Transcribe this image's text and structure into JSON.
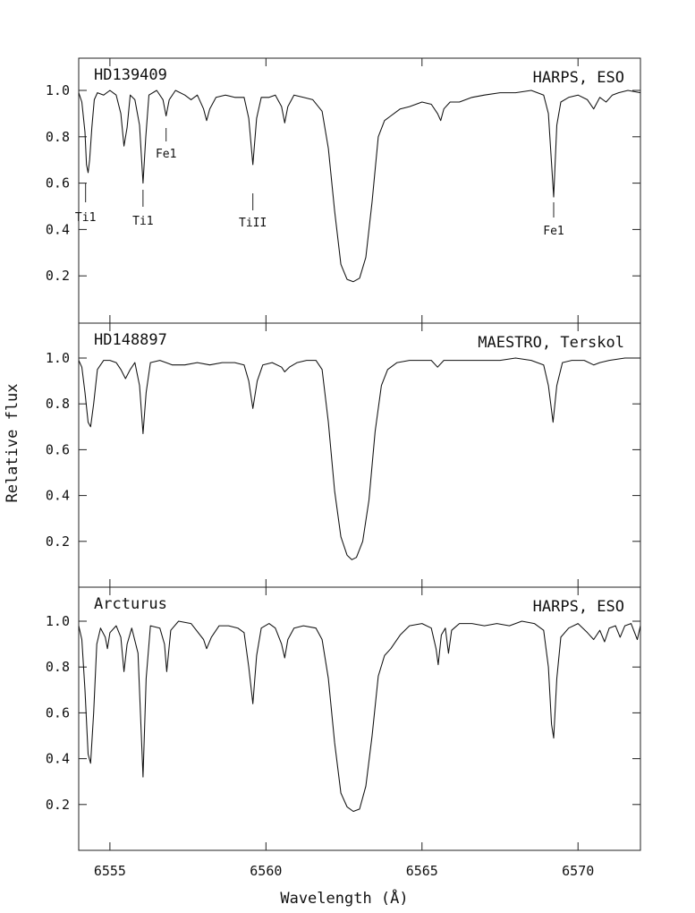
{
  "chart_data": {
    "type": "line",
    "ylabel": "Relative flux",
    "xlabel": "Wavelength (Å)",
    "xlim": [
      6554.0,
      6572.0
    ],
    "xticks": [
      6555,
      6560,
      6565,
      6570
    ],
    "ylim": [
      0.0,
      1.14
    ],
    "yticks": [
      0.2,
      0.4,
      0.6,
      0.8,
      1.0
    ],
    "ytick_labels": [
      "0.2",
      "0.4",
      "0.6",
      "0.8",
      "1.0"
    ],
    "panels": [
      {
        "star": "HD139409",
        "instrument": "HARPS, ESO",
        "line_ids": [
          {
            "label": "Ti1",
            "x": 6554.22
          },
          {
            "label": "Ti1",
            "x": 6556.06
          },
          {
            "label": "Fe1",
            "x": 6556.8
          },
          {
            "label": "TiII",
            "x": 6559.58
          },
          {
            "label": "Fe1",
            "x": 6569.22
          }
        ],
        "points": [
          [
            6554.0,
            0.99
          ],
          [
            6554.1,
            0.95
          ],
          [
            6554.2,
            0.82
          ],
          [
            6554.25,
            0.68
          ],
          [
            6554.3,
            0.645
          ],
          [
            6554.35,
            0.7
          ],
          [
            6554.42,
            0.84
          ],
          [
            6554.5,
            0.96
          ],
          [
            6554.6,
            0.99
          ],
          [
            6554.8,
            0.98
          ],
          [
            6555.0,
            1.0
          ],
          [
            6555.2,
            0.98
          ],
          [
            6555.35,
            0.9
          ],
          [
            6555.45,
            0.76
          ],
          [
            6555.55,
            0.84
          ],
          [
            6555.65,
            0.98
          ],
          [
            6555.8,
            0.96
          ],
          [
            6555.95,
            0.85
          ],
          [
            6556.06,
            0.6
          ],
          [
            6556.15,
            0.8
          ],
          [
            6556.25,
            0.98
          ],
          [
            6556.5,
            1.0
          ],
          [
            6556.7,
            0.96
          ],
          [
            6556.8,
            0.89
          ],
          [
            6556.9,
            0.96
          ],
          [
            6557.1,
            1.0
          ],
          [
            6557.4,
            0.98
          ],
          [
            6557.6,
            0.96
          ],
          [
            6557.8,
            0.98
          ],
          [
            6558.0,
            0.92
          ],
          [
            6558.1,
            0.87
          ],
          [
            6558.2,
            0.92
          ],
          [
            6558.4,
            0.97
          ],
          [
            6558.7,
            0.98
          ],
          [
            6559.0,
            0.97
          ],
          [
            6559.3,
            0.97
          ],
          [
            6559.45,
            0.88
          ],
          [
            6559.58,
            0.68
          ],
          [
            6559.7,
            0.88
          ],
          [
            6559.85,
            0.97
          ],
          [
            6560.1,
            0.97
          ],
          [
            6560.3,
            0.98
          ],
          [
            6560.5,
            0.93
          ],
          [
            6560.6,
            0.86
          ],
          [
            6560.7,
            0.93
          ],
          [
            6560.9,
            0.98
          ],
          [
            6561.2,
            0.97
          ],
          [
            6561.5,
            0.96
          ],
          [
            6561.8,
            0.91
          ],
          [
            6562.0,
            0.75
          ],
          [
            6562.2,
            0.48
          ],
          [
            6562.4,
            0.25
          ],
          [
            6562.6,
            0.185
          ],
          [
            6562.8,
            0.175
          ],
          [
            6563.0,
            0.19
          ],
          [
            6563.2,
            0.28
          ],
          [
            6563.4,
            0.52
          ],
          [
            6563.6,
            0.8
          ],
          [
            6563.8,
            0.87
          ],
          [
            6564.0,
            0.89
          ],
          [
            6564.3,
            0.92
          ],
          [
            6564.6,
            0.93
          ],
          [
            6565.0,
            0.95
          ],
          [
            6565.3,
            0.94
          ],
          [
            6565.5,
            0.9
          ],
          [
            6565.6,
            0.87
          ],
          [
            6565.7,
            0.92
          ],
          [
            6565.9,
            0.95
          ],
          [
            6566.2,
            0.95
          ],
          [
            6566.6,
            0.97
          ],
          [
            6567.0,
            0.98
          ],
          [
            6567.5,
            0.99
          ],
          [
            6568.0,
            0.99
          ],
          [
            6568.5,
            1.0
          ],
          [
            6568.9,
            0.98
          ],
          [
            6569.05,
            0.9
          ],
          [
            6569.22,
            0.54
          ],
          [
            6569.32,
            0.85
          ],
          [
            6569.45,
            0.95
          ],
          [
            6569.7,
            0.97
          ],
          [
            6570.0,
            0.98
          ],
          [
            6570.3,
            0.96
          ],
          [
            6570.5,
            0.92
          ],
          [
            6570.7,
            0.97
          ],
          [
            6570.9,
            0.95
          ],
          [
            6571.1,
            0.98
          ],
          [
            6571.3,
            0.99
          ],
          [
            6571.6,
            1.0
          ],
          [
            6572.0,
            0.99
          ]
        ]
      },
      {
        "star": "HD148897",
        "instrument": "MAESTRO, Terskol",
        "line_ids": [],
        "points": [
          [
            6554.0,
            0.99
          ],
          [
            6554.1,
            0.96
          ],
          [
            6554.2,
            0.85
          ],
          [
            6554.3,
            0.72
          ],
          [
            6554.38,
            0.7
          ],
          [
            6554.48,
            0.8
          ],
          [
            6554.6,
            0.95
          ],
          [
            6554.8,
            0.99
          ],
          [
            6555.0,
            0.99
          ],
          [
            6555.2,
            0.98
          ],
          [
            6555.35,
            0.95
          ],
          [
            6555.5,
            0.91
          ],
          [
            6555.65,
            0.95
          ],
          [
            6555.8,
            0.98
          ],
          [
            6555.95,
            0.88
          ],
          [
            6556.06,
            0.67
          ],
          [
            6556.16,
            0.85
          ],
          [
            6556.3,
            0.98
          ],
          [
            6556.6,
            0.99
          ],
          [
            6556.8,
            0.98
          ],
          [
            6557.0,
            0.97
          ],
          [
            6557.4,
            0.97
          ],
          [
            6557.8,
            0.98
          ],
          [
            6558.2,
            0.97
          ],
          [
            6558.6,
            0.98
          ],
          [
            6559.0,
            0.98
          ],
          [
            6559.3,
            0.97
          ],
          [
            6559.45,
            0.9
          ],
          [
            6559.58,
            0.78
          ],
          [
            6559.72,
            0.9
          ],
          [
            6559.9,
            0.97
          ],
          [
            6560.2,
            0.98
          ],
          [
            6560.5,
            0.96
          ],
          [
            6560.6,
            0.94
          ],
          [
            6560.75,
            0.96
          ],
          [
            6561.0,
            0.98
          ],
          [
            6561.3,
            0.99
          ],
          [
            6561.6,
            0.99
          ],
          [
            6561.8,
            0.95
          ],
          [
            6562.0,
            0.72
          ],
          [
            6562.2,
            0.42
          ],
          [
            6562.4,
            0.22
          ],
          [
            6562.6,
            0.14
          ],
          [
            6562.75,
            0.12
          ],
          [
            6562.9,
            0.13
          ],
          [
            6563.1,
            0.2
          ],
          [
            6563.3,
            0.38
          ],
          [
            6563.5,
            0.68
          ],
          [
            6563.7,
            0.88
          ],
          [
            6563.9,
            0.95
          ],
          [
            6564.2,
            0.98
          ],
          [
            6564.6,
            0.99
          ],
          [
            6565.0,
            0.99
          ],
          [
            6565.3,
            0.99
          ],
          [
            6565.5,
            0.96
          ],
          [
            6565.7,
            0.99
          ],
          [
            6566.0,
            0.99
          ],
          [
            6566.5,
            0.99
          ],
          [
            6567.0,
            0.99
          ],
          [
            6567.5,
            0.99
          ],
          [
            6568.0,
            1.0
          ],
          [
            6568.5,
            0.99
          ],
          [
            6568.9,
            0.97
          ],
          [
            6569.05,
            0.88
          ],
          [
            6569.2,
            0.72
          ],
          [
            6569.32,
            0.88
          ],
          [
            6569.5,
            0.98
          ],
          [
            6569.8,
            0.99
          ],
          [
            6570.2,
            0.99
          ],
          [
            6570.5,
            0.97
          ],
          [
            6570.7,
            0.98
          ],
          [
            6571.0,
            0.99
          ],
          [
            6571.5,
            1.0
          ],
          [
            6572.0,
            1.0
          ]
        ]
      },
      {
        "star": "Arcturus",
        "instrument": "HARPS, ESO",
        "line_ids": [],
        "points": [
          [
            6554.0,
            0.98
          ],
          [
            6554.1,
            0.92
          ],
          [
            6554.2,
            0.7
          ],
          [
            6554.3,
            0.42
          ],
          [
            6554.38,
            0.38
          ],
          [
            6554.48,
            0.6
          ],
          [
            6554.58,
            0.9
          ],
          [
            6554.7,
            0.97
          ],
          [
            6554.85,
            0.93
          ],
          [
            6554.92,
            0.88
          ],
          [
            6555.0,
            0.95
          ],
          [
            6555.2,
            0.98
          ],
          [
            6555.35,
            0.93
          ],
          [
            6555.45,
            0.78
          ],
          [
            6555.55,
            0.9
          ],
          [
            6555.7,
            0.97
          ],
          [
            6555.9,
            0.86
          ],
          [
            6556.06,
            0.32
          ],
          [
            6556.16,
            0.75
          ],
          [
            6556.3,
            0.98
          ],
          [
            6556.6,
            0.97
          ],
          [
            6556.75,
            0.9
          ],
          [
            6556.82,
            0.78
          ],
          [
            6556.95,
            0.96
          ],
          [
            6557.2,
            1.0
          ],
          [
            6557.6,
            0.99
          ],
          [
            6558.0,
            0.92
          ],
          [
            6558.1,
            0.88
          ],
          [
            6558.25,
            0.93
          ],
          [
            6558.5,
            0.98
          ],
          [
            6558.8,
            0.98
          ],
          [
            6559.1,
            0.97
          ],
          [
            6559.3,
            0.95
          ],
          [
            6559.45,
            0.8
          ],
          [
            6559.58,
            0.64
          ],
          [
            6559.7,
            0.85
          ],
          [
            6559.85,
            0.97
          ],
          [
            6560.1,
            0.99
          ],
          [
            6560.3,
            0.97
          ],
          [
            6560.5,
            0.9
          ],
          [
            6560.6,
            0.84
          ],
          [
            6560.7,
            0.92
          ],
          [
            6560.9,
            0.97
          ],
          [
            6561.2,
            0.98
          ],
          [
            6561.6,
            0.97
          ],
          [
            6561.8,
            0.92
          ],
          [
            6562.0,
            0.75
          ],
          [
            6562.2,
            0.47
          ],
          [
            6562.4,
            0.25
          ],
          [
            6562.6,
            0.19
          ],
          [
            6562.8,
            0.17
          ],
          [
            6563.0,
            0.18
          ],
          [
            6563.2,
            0.28
          ],
          [
            6563.4,
            0.5
          ],
          [
            6563.6,
            0.76
          ],
          [
            6563.8,
            0.85
          ],
          [
            6564.0,
            0.88
          ],
          [
            6564.3,
            0.94
          ],
          [
            6564.6,
            0.98
          ],
          [
            6565.0,
            0.99
          ],
          [
            6565.3,
            0.97
          ],
          [
            6565.45,
            0.88
          ],
          [
            6565.52,
            0.81
          ],
          [
            6565.62,
            0.94
          ],
          [
            6565.75,
            0.97
          ],
          [
            6565.85,
            0.86
          ],
          [
            6565.95,
            0.96
          ],
          [
            6566.2,
            0.99
          ],
          [
            6566.6,
            0.99
          ],
          [
            6567.0,
            0.98
          ],
          [
            6567.4,
            0.99
          ],
          [
            6567.8,
            0.98
          ],
          [
            6568.2,
            1.0
          ],
          [
            6568.6,
            0.99
          ],
          [
            6568.9,
            0.96
          ],
          [
            6569.05,
            0.8
          ],
          [
            6569.15,
            0.55
          ],
          [
            6569.22,
            0.49
          ],
          [
            6569.32,
            0.75
          ],
          [
            6569.45,
            0.93
          ],
          [
            6569.7,
            0.97
          ],
          [
            6570.0,
            0.99
          ],
          [
            6570.3,
            0.95
          ],
          [
            6570.5,
            0.92
          ],
          [
            6570.7,
            0.96
          ],
          [
            6570.85,
            0.91
          ],
          [
            6571.0,
            0.97
          ],
          [
            6571.2,
            0.98
          ],
          [
            6571.35,
            0.93
          ],
          [
            6571.5,
            0.98
          ],
          [
            6571.7,
            0.99
          ],
          [
            6571.9,
            0.92
          ],
          [
            6572.0,
            0.98
          ]
        ]
      }
    ]
  }
}
